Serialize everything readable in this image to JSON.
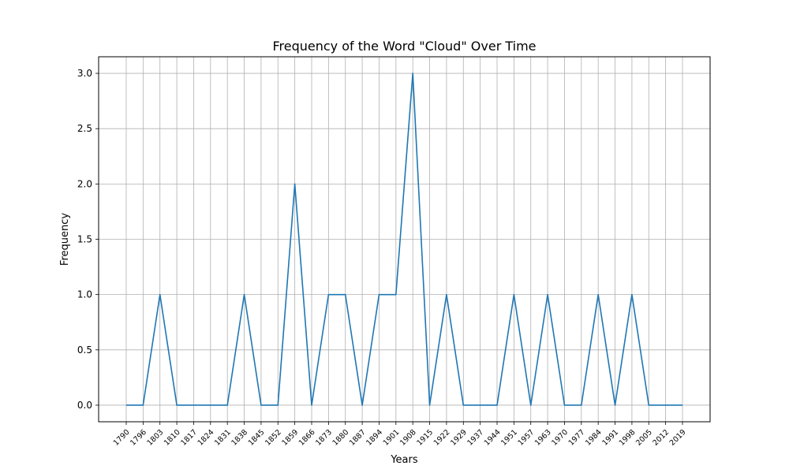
{
  "chart_data": {
    "type": "line",
    "title": "Frequency of the Word \"Cloud\" Over Time",
    "xlabel": "Years",
    "ylabel": "Frequency",
    "grid": true,
    "ylim": [
      -0.15,
      3.15
    ],
    "yticks": [
      "0.0",
      "0.5",
      "1.0",
      "1.5",
      "2.0",
      "2.5",
      "3.0"
    ],
    "series_color": "#1f77b4",
    "categories": [
      "1790",
      "1796",
      "1803",
      "1810",
      "1817",
      "1824",
      "1831",
      "1838",
      "1845",
      "1852",
      "1859",
      "1866",
      "1873",
      "1880",
      "1887",
      "1894",
      "1901",
      "1908",
      "1915",
      "1922",
      "1929",
      "1937",
      "1944",
      "1951",
      "1957",
      "1963",
      "1970",
      "1977",
      "1984",
      "1991",
      "1998",
      "2005",
      "2012",
      "2019"
    ],
    "values": [
      0,
      0,
      1,
      0,
      0,
      0,
      0,
      1,
      0,
      0,
      2,
      0,
      1,
      1,
      0,
      1,
      1,
      3,
      0,
      1,
      0,
      0,
      0,
      1,
      0,
      1,
      0,
      0,
      1,
      0,
      1,
      0,
      0,
      0
    ]
  }
}
